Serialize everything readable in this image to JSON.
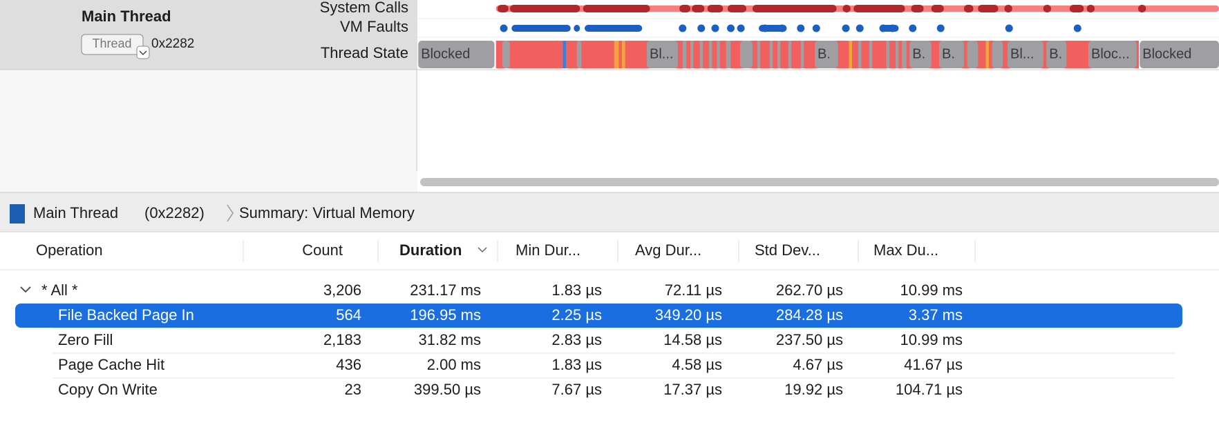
{
  "timeline": {
    "thread_name": "Main Thread",
    "thread_button": "Thread",
    "thread_id": "0x2282",
    "track_labels": [
      "System Calls",
      "VM Faults",
      "Thread State"
    ],
    "state_labels": [
      "Blocked",
      "Bl...",
      "B.",
      "B.",
      "B.",
      "Bl...",
      "B.",
      "Bloc...",
      "Blocked"
    ]
  },
  "breadcrumb": {
    "thread": "Main Thread",
    "thread_id": "(0x2282)",
    "summary": "Summary: Virtual Memory"
  },
  "table": {
    "columns": [
      "Operation",
      "Count",
      "Duration",
      "Min Dur...",
      "Avg Dur...",
      "Std Dev...",
      "Max Du..."
    ],
    "rows": [
      [
        "* All *",
        "3,206",
        "231.17 ms",
        "1.83 µs",
        "72.11 µs",
        "262.70 µs",
        "10.99 ms"
      ],
      [
        "File Backed Page In",
        "564",
        "196.95 ms",
        "2.25 µs",
        "349.20 µs",
        "284.28 µs",
        "3.37 ms"
      ],
      [
        "Zero Fill",
        "2,183",
        "31.82 ms",
        "2.83 µs",
        "14.58 µs",
        "237.50 µs",
        "10.99 ms"
      ],
      [
        "Page Cache Hit",
        "436",
        "2.00 ms",
        "1.83 µs",
        "4.58 µs",
        "4.67 µs",
        "41.67 µs"
      ],
      [
        "Copy On Write",
        "23",
        "399.50 µs",
        "7.67 µs",
        "17.37 µs",
        "19.92 µs",
        "104.71 µs"
      ]
    ]
  }
}
